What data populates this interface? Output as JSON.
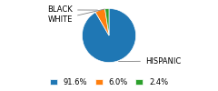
{
  "chart_data": {
    "type": "pie",
    "categories": [
      "HISPANIC",
      "BLACK",
      "WHITE"
    ],
    "values": [
      91.6,
      6.0,
      2.4
    ],
    "value_labels": [
      "91.6%",
      "6.0%",
      "2.4%"
    ],
    "legend": "lower center"
  }
}
